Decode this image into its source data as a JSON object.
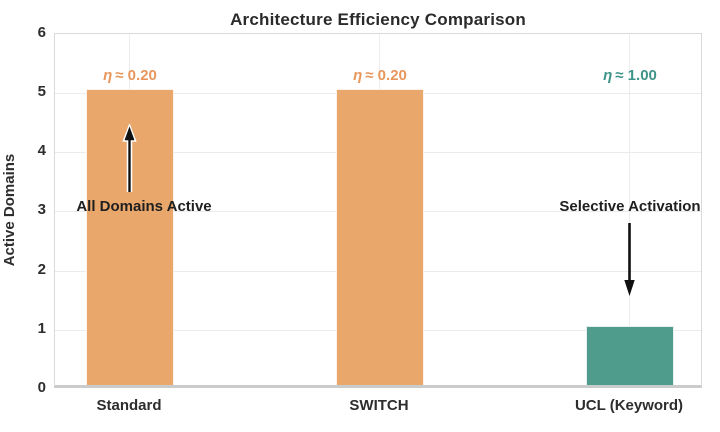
{
  "title": "Architecture Efficiency Comparison",
  "chart_data": {
    "type": "bar",
    "categories": [
      "Standard",
      "SWITCH",
      "UCL (Keyword)"
    ],
    "values": [
      5,
      5,
      1
    ],
    "bar_colors": [
      "#E9A76C",
      "#E9A76C",
      "#4F9B8C"
    ],
    "title": "Architecture Efficiency Comparison",
    "xlabel": "",
    "ylabel": "Active Domains",
    "ylim": [
      0,
      6
    ],
    "yticks": [
      0,
      1,
      2,
      3,
      4,
      5,
      6
    ],
    "grid": true,
    "legend_position": "none",
    "annotations": [
      {
        "text": "η ≈ 0.20",
        "category": "Standard",
        "approx_y": 5.4,
        "color": "#E8975C"
      },
      {
        "text": "η ≈ 0.20",
        "category": "SWITCH",
        "approx_y": 5.4,
        "color": "#E8975C"
      },
      {
        "text": "η ≈ 1.00",
        "category": "UCL (Keyword)",
        "approx_y": 5.4,
        "color": "#3F948A"
      },
      {
        "text": "All Domains Active",
        "category": "Standard",
        "approx_y": 3.1,
        "arrow": "up-toward-bar"
      },
      {
        "text": "Selective Activation",
        "category": "UCL (Keyword)",
        "approx_y": 3.1,
        "arrow": "down-toward-bar"
      }
    ]
  },
  "eta_labels": [
    {
      "symbol": "η",
      "value": "≈ 0.20",
      "color": "#E8975C"
    },
    {
      "symbol": "η",
      "value": "≈ 0.20",
      "color": "#E8975C"
    },
    {
      "symbol": "η",
      "value": "≈ 1.00",
      "color": "#3F948A"
    }
  ],
  "callouts": {
    "left": "All Domains Active",
    "right": "Selective Activation"
  },
  "colors": {
    "orange_bar": "#E9A76C",
    "teal_bar": "#4F9B8C",
    "orange_text": "#E8975C",
    "teal_text": "#3F948A",
    "grid": "#EBEBEB",
    "spine": "#D9D9D9",
    "baseline": "#C9CCCB",
    "text": "#2D2D2D",
    "arrow": "#111111"
  }
}
